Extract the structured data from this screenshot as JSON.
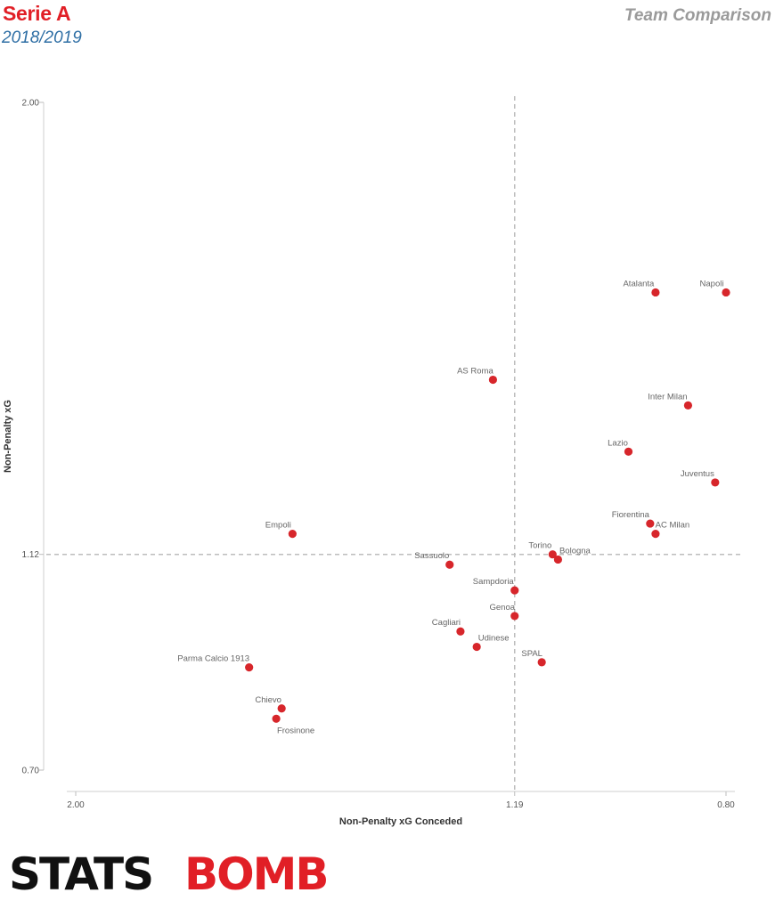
{
  "header": {
    "title": "Serie A",
    "season": "2018/2019",
    "subtitle": "Team Comparison"
  },
  "logo": {
    "part1": "STATS",
    "part2": "BOMB"
  },
  "colors": {
    "accent": "#e11f26",
    "season": "#2f6fa5",
    "point": "#d7262b"
  },
  "chart_data": {
    "type": "scatter",
    "xlabel": "Non-Penalty xG Conceded",
    "ylabel": "Non-Penalty xG",
    "xlim": [
      2.0,
      0.8
    ],
    "ylim": [
      0.7,
      2.0
    ],
    "x_reversed": true,
    "xticks": [
      "2.00",
      "1.19",
      "0.80"
    ],
    "yticks": [
      "2.00",
      "1.12",
      "0.70"
    ],
    "reference_lines": {
      "x": 1.19,
      "y": 1.12
    },
    "points": [
      {
        "name": "Napoli",
        "x": 0.8,
        "y": 1.63
      },
      {
        "name": "Atalanta",
        "x": 0.93,
        "y": 1.63
      },
      {
        "name": "AS Roma",
        "x": 1.23,
        "y": 1.46
      },
      {
        "name": "Inter Milan",
        "x": 0.87,
        "y": 1.41
      },
      {
        "name": "Lazio",
        "x": 0.98,
        "y": 1.32
      },
      {
        "name": "Juventus",
        "x": 0.82,
        "y": 1.26
      },
      {
        "name": "Fiorentina",
        "x": 0.94,
        "y": 1.18
      },
      {
        "name": "AC Milan",
        "x": 0.93,
        "y": 1.16
      },
      {
        "name": "Empoli",
        "x": 1.6,
        "y": 1.16
      },
      {
        "name": "Torino",
        "x": 1.12,
        "y": 1.12
      },
      {
        "name": "Bologna",
        "x": 1.11,
        "y": 1.11
      },
      {
        "name": "Sassuolo",
        "x": 1.31,
        "y": 1.1
      },
      {
        "name": "Sampdoria",
        "x": 1.19,
        "y": 1.05
      },
      {
        "name": "Genoa",
        "x": 1.19,
        "y": 1.0
      },
      {
        "name": "Cagliari",
        "x": 1.29,
        "y": 0.97
      },
      {
        "name": "Udinese",
        "x": 1.26,
        "y": 0.94
      },
      {
        "name": "SPAL",
        "x": 1.14,
        "y": 0.91
      },
      {
        "name": "Parma Calcio 1913",
        "x": 1.68,
        "y": 0.9
      },
      {
        "name": "Chievo",
        "x": 1.62,
        "y": 0.82
      },
      {
        "name": "Frosinone",
        "x": 1.63,
        "y": 0.8
      }
    ]
  }
}
